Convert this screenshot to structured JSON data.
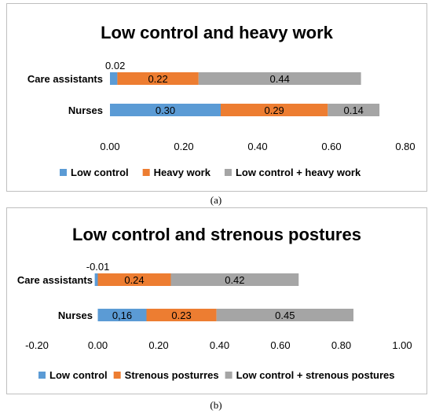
{
  "chart_data": [
    {
      "type": "bar",
      "orientation": "horizontal",
      "stacked": true,
      "title": "Low control and heavy work",
      "categories": [
        "Care assistants",
        "Nurses"
      ],
      "series": [
        {
          "name": "Low control",
          "values": [
            0.02,
            0.3
          ],
          "labels": [
            "0.02",
            "0.30"
          ],
          "color": "#5B9BD5"
        },
        {
          "name": "Heavy work",
          "values": [
            0.22,
            0.29
          ],
          "labels": [
            "0.22",
            "0.29"
          ],
          "color": "#ED7D31"
        },
        {
          "name": "Low control + heavy work",
          "values": [
            0.44,
            0.14
          ],
          "labels": [
            "0.44",
            "0.14"
          ],
          "color": "#A5A5A5"
        }
      ],
      "xlim": [
        0.0,
        0.8
      ],
      "xticks": [
        "0.00",
        "0.20",
        "0.40",
        "0.60",
        "0.80"
      ],
      "legend_position": "bottom"
    },
    {
      "type": "bar",
      "orientation": "horizontal",
      "stacked": true,
      "title": "Low control and strenous postures",
      "categories": [
        "Care assistants",
        "Nurses"
      ],
      "series": [
        {
          "name": "Low control",
          "values": [
            -0.01,
            0.16
          ],
          "labels": [
            "-0.01",
            "0,16"
          ],
          "color": "#5B9BD5"
        },
        {
          "name": "Strenous posturres",
          "values": [
            0.24,
            0.23
          ],
          "labels": [
            "0.24",
            "0.23"
          ],
          "color": "#ED7D31"
        },
        {
          "name": "Low control + strenous postures",
          "values": [
            0.42,
            0.45
          ],
          "labels": [
            "0.42",
            "0.45"
          ],
          "color": "#A5A5A5"
        }
      ],
      "xlim": [
        -0.2,
        1.0
      ],
      "xticks": [
        "-0.20",
        "0.00",
        "0.20",
        "0.40",
        "0.60",
        "0.80",
        "1.00"
      ],
      "legend_position": "bottom"
    }
  ],
  "captions": [
    "(a)",
    "(b)"
  ]
}
